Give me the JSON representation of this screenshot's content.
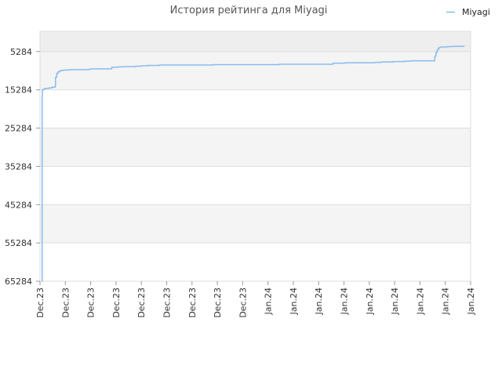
{
  "chart_data": {
    "type": "line",
    "title": "История рейтинга для Miyagi",
    "xlabel": "",
    "ylabel": "",
    "y_inverted": true,
    "ylim": [
      65284,
      0
    ],
    "yticks": [
      5284,
      15284,
      25284,
      35284,
      45284,
      55284,
      65284
    ],
    "xtick_labels": [
      "Dec.23",
      "Dec.23",
      "Dec.23",
      "Dec.23",
      "Dec.23",
      "Dec.23",
      "Dec.23",
      "Dec.23",
      "Dec.23",
      "Jan.24",
      "Jan.24",
      "Jan.24",
      "Jan.24",
      "Jan.24",
      "Jan.24",
      "Jan.24",
      "Jan.24",
      "Jan.24"
    ],
    "grid": true,
    "legend_position": "top-right",
    "series": [
      {
        "name": "Miyagi",
        "color": "#88bbee",
        "x": [
          0.3,
          0.35,
          0.4,
          0.5,
          0.7,
          1.0,
          1.5,
          2.0,
          2.5,
          2.6,
          2.8,
          3.0,
          3.3,
          3.7,
          4.0,
          5.0,
          6.0,
          7.0,
          8.0,
          8.2,
          8.5,
          9.0,
          10.0,
          11.0,
          12.0,
          13.0,
          14.0,
          15.0,
          16.0,
          17.0,
          18.0,
          19.0,
          20.0,
          21.0,
          22.0,
          23.0,
          24.0,
          25.0,
          26.0,
          27.0,
          28.0,
          29.0,
          30.0,
          31.0,
          32.0,
          33.0,
          34.0,
          35.0,
          36.0,
          37.0,
          38.0,
          39.0,
          40.0,
          41.0,
          42.0,
          43.0,
          44.0,
          45.0,
          46.0,
          47.0,
          48.0,
          49.0,
          50.0,
          51.0,
          52.0,
          53.0,
          54.0,
          55.0,
          56.0,
          57.0,
          58.0,
          59.0,
          60.0,
          61.0,
          62.0,
          63.0,
          64.0,
          65.0,
          65.5,
          66.0,
          66.2,
          66.4,
          66.6,
          66.8,
          67.0,
          68.0,
          69.0,
          70.0,
          71.0
        ],
        "values": [
          65284,
          17000,
          15300,
          15200,
          15000,
          14900,
          14800,
          14600,
          14400,
          12000,
          11000,
          10600,
          10300,
          10200,
          10100,
          10000,
          10000,
          10000,
          10000,
          9900,
          9800,
          9800,
          9800,
          9800,
          9400,
          9300,
          9200,
          9200,
          9100,
          9000,
          8900,
          8900,
          8800,
          8800,
          8800,
          8800,
          8800,
          8800,
          8800,
          8800,
          8800,
          8700,
          8700,
          8700,
          8700,
          8700,
          8700,
          8700,
          8700,
          8700,
          8700,
          8700,
          8600,
          8600,
          8600,
          8600,
          8600,
          8600,
          8600,
          8600,
          8600,
          8300,
          8300,
          8200,
          8200,
          8200,
          8200,
          8200,
          8100,
          8000,
          8000,
          7900,
          7900,
          7800,
          7700,
          7700,
          7700,
          7700,
          7700,
          6500,
          5500,
          4800,
          4400,
          4200,
          4100,
          4000,
          3900,
          3900,
          3900
        ]
      }
    ]
  }
}
